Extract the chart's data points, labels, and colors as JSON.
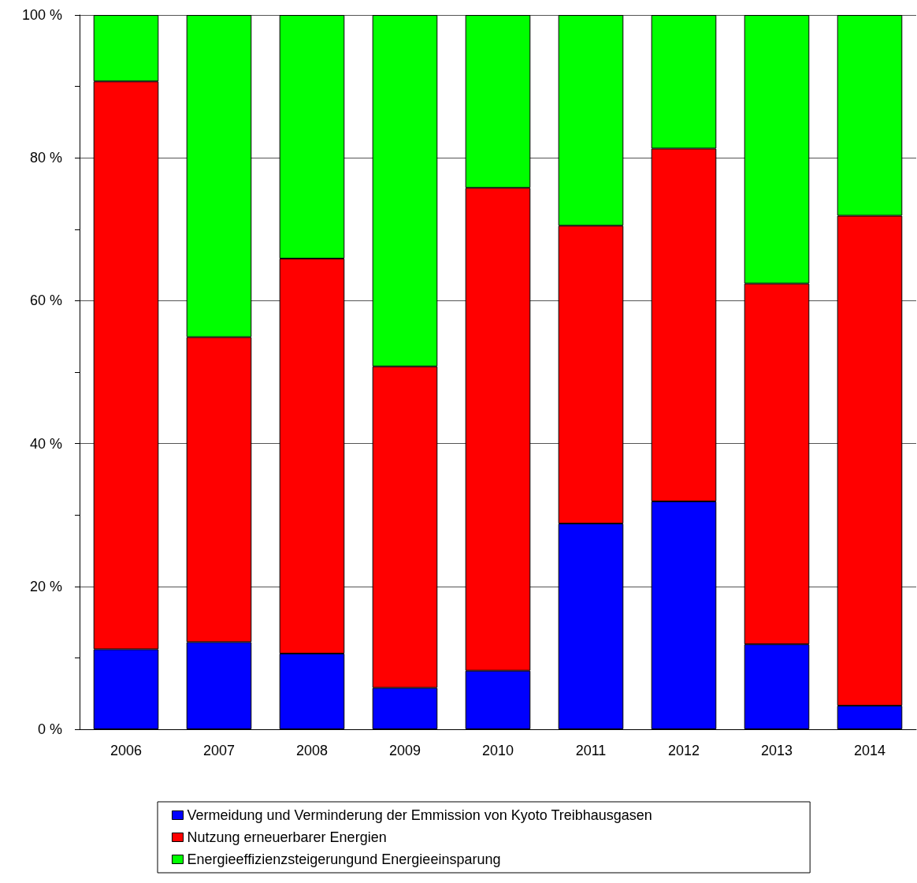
{
  "chart_data": {
    "type": "bar",
    "stacked": true,
    "categories": [
      "2006",
      "2007",
      "2008",
      "2009",
      "2010",
      "2011",
      "2012",
      "2013",
      "2014"
    ],
    "series": [
      {
        "name": "Vermeidung und Verminderung der Emmission von Kyoto Treibhausgasen",
        "color": "#0000ff",
        "values": [
          11.2,
          12.2,
          10.6,
          5.8,
          8.2,
          28.8,
          31.9,
          11.9,
          3.3
        ]
      },
      {
        "name": "Nutzung erneuerbarer Energien",
        "color": "#ff0000",
        "values": [
          79.5,
          42.7,
          55.3,
          45.0,
          67.6,
          41.7,
          49.4,
          50.5,
          68.6
        ]
      },
      {
        "name": "Energieeffizienzsteigerungund Energieeinsparung",
        "color": "#00ff00",
        "values": [
          9.3,
          45.1,
          34.1,
          49.2,
          24.2,
          29.5,
          18.7,
          37.6,
          28.1
        ]
      }
    ],
    "ylim": [
      0,
      100
    ],
    "yticks": [
      {
        "value": 0,
        "label": "0 %"
      },
      {
        "value": 10,
        "label": null
      },
      {
        "value": 20,
        "label": "20 %"
      },
      {
        "value": 30,
        "label": null
      },
      {
        "value": 40,
        "label": "40 %"
      },
      {
        "value": 50,
        "label": null
      },
      {
        "value": 60,
        "label": "60 %"
      },
      {
        "value": 70,
        "label": null
      },
      {
        "value": 80,
        "label": "80 %"
      },
      {
        "value": 90,
        "label": null
      },
      {
        "value": 100,
        "label": "100 %"
      }
    ],
    "grid": "y",
    "legend": "bottom"
  }
}
